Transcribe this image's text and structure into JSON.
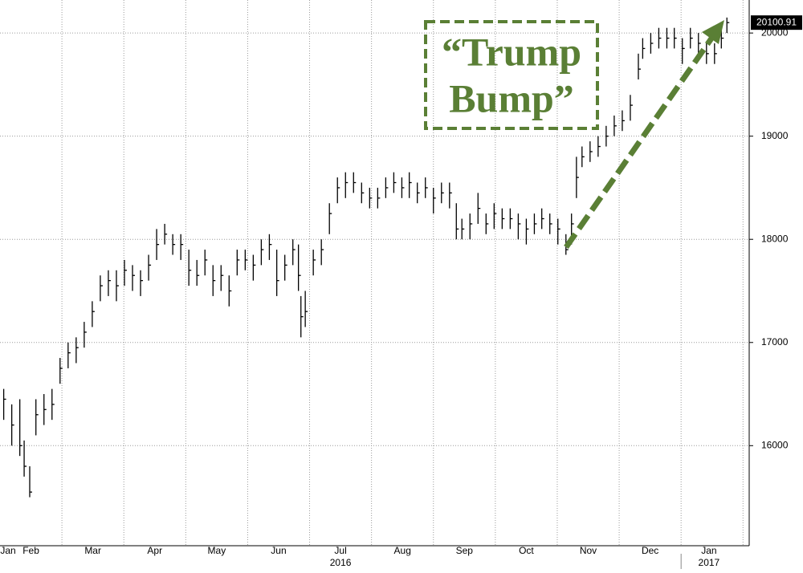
{
  "chart_data": {
    "type": "ohlc",
    "x": [
      1.06,
      1.19,
      1.32,
      1.39,
      1.48,
      1.58,
      1.71,
      1.84,
      1.97,
      2.1,
      2.23,
      2.36,
      2.49,
      2.62,
      2.75,
      2.88,
      3.01,
      3.14,
      3.27,
      3.4,
      3.53,
      3.66,
      3.79,
      3.92,
      4.05,
      4.18,
      4.31,
      4.44,
      4.57,
      4.7,
      4.83,
      4.96,
      5.09,
      5.22,
      5.35,
      5.47,
      5.6,
      5.73,
      5.82,
      5.86,
      5.93,
      6.06,
      6.19,
      6.32,
      6.45,
      6.58,
      6.71,
      6.84,
      6.97,
      7.1,
      7.23,
      7.36,
      7.49,
      7.61,
      7.74,
      7.87,
      8.0,
      8.13,
      8.26,
      8.37,
      8.46,
      8.59,
      8.72,
      8.85,
      8.98,
      9.11,
      9.24,
      9.37,
      9.5,
      9.63,
      9.75,
      9.88,
      10.01,
      10.14,
      10.23,
      10.31,
      10.4,
      10.53,
      10.66,
      10.79,
      10.92,
      11.05,
      11.18,
      11.31,
      11.38,
      11.51,
      11.64,
      11.77,
      11.89,
      12.02,
      12.15,
      12.28,
      12.41,
      12.54,
      12.65,
      12.74
    ],
    "high": [
      16550,
      16400,
      16450,
      16050,
      15800,
      16450,
      16500,
      16550,
      16850,
      17000,
      17050,
      17200,
      17400,
      17650,
      17700,
      17700,
      17800,
      17750,
      17700,
      17850,
      18100,
      18150,
      18050,
      18050,
      17900,
      17800,
      17900,
      17750,
      17750,
      17650,
      17900,
      17900,
      17850,
      18000,
      18050,
      17900,
      17850,
      18000,
      17950,
      17450,
      17500,
      17900,
      18000,
      18350,
      18600,
      18650,
      18650,
      18550,
      18500,
      18500,
      18600,
      18650,
      18600,
      18650,
      18550,
      18600,
      18500,
      18550,
      18550,
      18350,
      18200,
      18250,
      18450,
      18250,
      18350,
      18300,
      18300,
      18250,
      18200,
      18250,
      18300,
      18250,
      18200,
      18050,
      18250,
      18800,
      18900,
      18950,
      19000,
      19100,
      19200,
      19250,
      19400,
      19800,
      19950,
      20000,
      20050,
      20050,
      20050,
      19950,
      20050,
      20000,
      19900,
      19900,
      20050,
      20150
    ],
    "low": [
      16250,
      16000,
      15900,
      15700,
      15500,
      16100,
      16200,
      16250,
      16600,
      16750,
      16800,
      16950,
      17150,
      17400,
      17450,
      17400,
      17550,
      17500,
      17450,
      17600,
      17800,
      17950,
      17850,
      17800,
      17550,
      17550,
      17650,
      17450,
      17500,
      17350,
      17650,
      17700,
      17600,
      17750,
      17800,
      17450,
      17600,
      17750,
      17500,
      17050,
      17150,
      17650,
      17750,
      18050,
      18350,
      18400,
      18450,
      18350,
      18300,
      18300,
      18400,
      18450,
      18400,
      18400,
      18350,
      18400,
      18250,
      18350,
      18300,
      18000,
      18000,
      18000,
      18150,
      18050,
      18100,
      18100,
      18100,
      18000,
      17950,
      18050,
      18100,
      18050,
      17950,
      17850,
      17950,
      18400,
      18700,
      18750,
      18800,
      18900,
      19000,
      19050,
      19150,
      19550,
      19750,
      19800,
      19850,
      19850,
      19850,
      19700,
      19850,
      19800,
      19700,
      19700,
      19850,
      20000
    ],
    "close": [
      16450,
      16200,
      16000,
      15800,
      15550,
      16300,
      16350,
      16400,
      16750,
      16900,
      16950,
      17100,
      17300,
      17550,
      17600,
      17550,
      17700,
      17650,
      17600,
      17750,
      17950,
      18050,
      17950,
      17950,
      17700,
      17650,
      17800,
      17600,
      17650,
      17500,
      17800,
      17800,
      17750,
      17900,
      17950,
      17600,
      17750,
      17900,
      17650,
      17250,
      17300,
      17800,
      17900,
      18250,
      18500,
      18550,
      18550,
      18450,
      18400,
      18400,
      18500,
      18550,
      18500,
      18550,
      18450,
      18500,
      18400,
      18450,
      18450,
      18100,
      18100,
      18150,
      18300,
      18150,
      18250,
      18200,
      18200,
      18150,
      18100,
      18150,
      18200,
      18150,
      18100,
      17900,
      18150,
      18600,
      18800,
      18850,
      18900,
      19000,
      19100,
      19150,
      19300,
      19650,
      19850,
      19900,
      19950,
      19950,
      19950,
      19850,
      19950,
      19900,
      19800,
      19800,
      19950,
      20100.91
    ],
    "color": "#000000",
    "xlim": [
      1,
      13.1
    ],
    "xticks": [
      {
        "value": 1.13,
        "label": "Jan"
      },
      {
        "value": 1.5,
        "label": "Feb"
      },
      {
        "value": 2.5,
        "label": "Mar"
      },
      {
        "value": 3.5,
        "label": "Apr"
      },
      {
        "value": 4.5,
        "label": "May"
      },
      {
        "value": 5.5,
        "label": "Jun"
      },
      {
        "value": 6.5,
        "label": "Jul"
      },
      {
        "value": 7.5,
        "label": "Aug"
      },
      {
        "value": 8.5,
        "label": "Sep"
      },
      {
        "value": 9.5,
        "label": "Oct"
      },
      {
        "value": 10.5,
        "label": "Nov"
      },
      {
        "value": 11.5,
        "label": "Dec"
      },
      {
        "value": 12.45,
        "label": "Jan"
      }
    ],
    "xgrid": [
      2,
      3,
      4,
      5,
      6,
      7,
      8,
      9,
      10,
      11,
      12,
      13
    ],
    "year_labels": [
      {
        "value": 6.5,
        "label": "2016"
      },
      {
        "value": 12.45,
        "label": "2017"
      }
    ],
    "year_break": 12,
    "ylim": [
      15030,
      20320
    ],
    "yticks": [
      16000,
      17000,
      18000,
      19000,
      20000
    ],
    "grid": true,
    "annotation": {
      "lines": [
        "“Trump",
        "Bump”"
      ],
      "color": "#5a7f35"
    }
  }
}
